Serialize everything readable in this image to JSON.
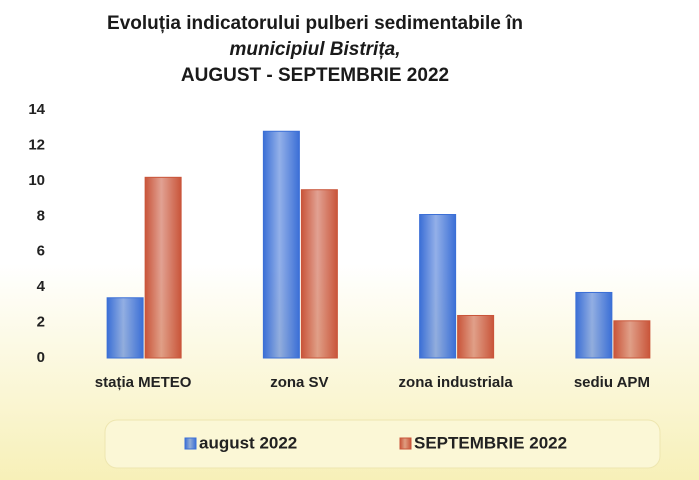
{
  "chart_data": {
    "type": "bar",
    "title_lines": [
      "Evoluția indicatorului pulberi sedimentabile în",
      "municipiul Bistrița,",
      "AUGUST - SEPTEMBRIE 2022"
    ],
    "categories": [
      "stația METEO",
      "zona SV",
      "zona industriala",
      "sediu APM"
    ],
    "series": [
      {
        "name": "august 2022",
        "color": "#3b6fd6",
        "values": [
          3.4,
          12.8,
          8.1,
          3.7
        ]
      },
      {
        "name": "SEPTEMBRIE 2022",
        "color": "#c9553a",
        "values": [
          10.2,
          9.5,
          2.4,
          2.1
        ]
      }
    ],
    "ylim": [
      0,
      14
    ],
    "yticks": [
      0,
      2,
      4,
      6,
      8,
      10,
      12,
      14
    ],
    "grid": false,
    "legend": "bottom"
  }
}
